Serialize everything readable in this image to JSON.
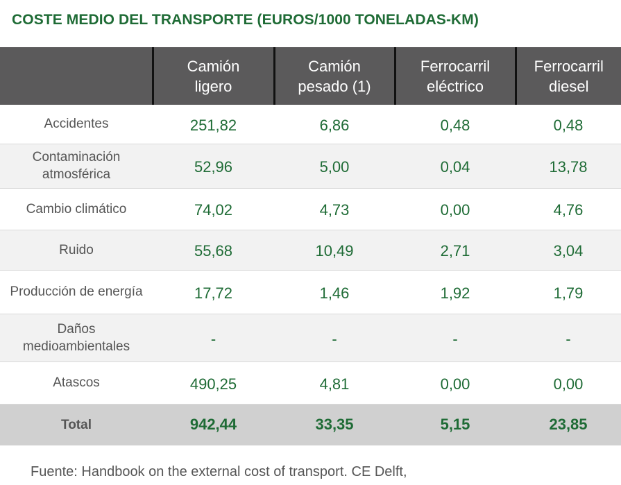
{
  "title": "COSTE MEDIO DEL TRANSPORTE (EUROS/1000 TONELADAS-KM)",
  "table": {
    "headers": [
      {
        "line1": "Camión",
        "line2": "ligero"
      },
      {
        "line1": "Camión",
        "line2": "pesado (1)"
      },
      {
        "line1": "Ferrocarril",
        "line2": "eléctrico"
      },
      {
        "line1": "Ferrocarril",
        "line2": "diesel"
      }
    ],
    "rows": [
      {
        "label": "Accidentes",
        "values": [
          "251,82",
          "6,86",
          "0,48",
          "0,48"
        ]
      },
      {
        "label": "Contaminación atmosférica",
        "values": [
          "52,96",
          "5,00",
          "0,04",
          "13,78"
        ]
      },
      {
        "label": "Cambio climático",
        "values": [
          "74,02",
          "4,73",
          "0,00",
          "4,76"
        ]
      },
      {
        "label": "Ruido",
        "values": [
          "55,68",
          "10,49",
          "2,71",
          "3,04"
        ]
      },
      {
        "label": "Producción de energía",
        "values": [
          "17,72",
          "1,46",
          "1,92",
          "1,79"
        ]
      },
      {
        "label": "Daños medioambientales",
        "values": [
          "-",
          "-",
          "-",
          "-"
        ]
      },
      {
        "label": "Atascos",
        "values": [
          "490,25",
          "4,81",
          "0,00",
          "0,00"
        ]
      }
    ],
    "total": {
      "label": "Total",
      "values": [
        "942,44",
        "33,35",
        "5,15",
        "23,85"
      ]
    }
  },
  "source": "Fuente: Handbook on the external cost of transport. CE Delft,",
  "colors": {
    "accent_green": "#1e6b35",
    "header_bg": "#5b5a5b",
    "total_bg": "#d0d0d0"
  }
}
